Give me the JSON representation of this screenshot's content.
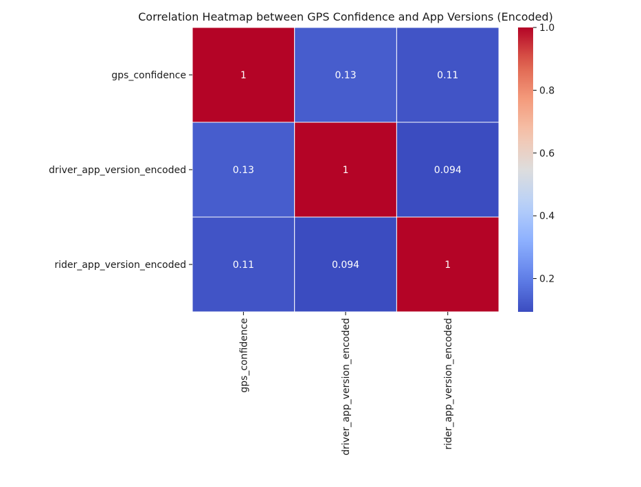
{
  "chart_data": {
    "type": "heatmap",
    "title": "Correlation Heatmap between GPS Confidence and App Versions (Encoded)",
    "rows": [
      "gps_confidence",
      "driver_app_version_encoded",
      "rider_app_version_encoded"
    ],
    "columns": [
      "gps_confidence",
      "driver_app_version_encoded",
      "rider_app_version_encoded"
    ],
    "values": [
      [
        1.0,
        0.13,
        0.11
      ],
      [
        0.13,
        1.0,
        0.094
      ],
      [
        0.11,
        0.094,
        1.0
      ]
    ],
    "annotations": [
      [
        "1",
        "0.13",
        "0.11"
      ],
      [
        "0.13",
        "1",
        "0.094"
      ],
      [
        "0.11",
        "0.094",
        "1"
      ]
    ],
    "colormap": "coolwarm",
    "colorbar": {
      "range": [
        0.094,
        1.0
      ],
      "ticks": [
        0.2,
        0.4,
        0.6,
        0.8,
        1.0
      ],
      "tick_labels": [
        "0.2",
        "0.4",
        "0.6",
        "0.8",
        "1.0"
      ]
    },
    "cell_border_color": "#ffffff"
  }
}
